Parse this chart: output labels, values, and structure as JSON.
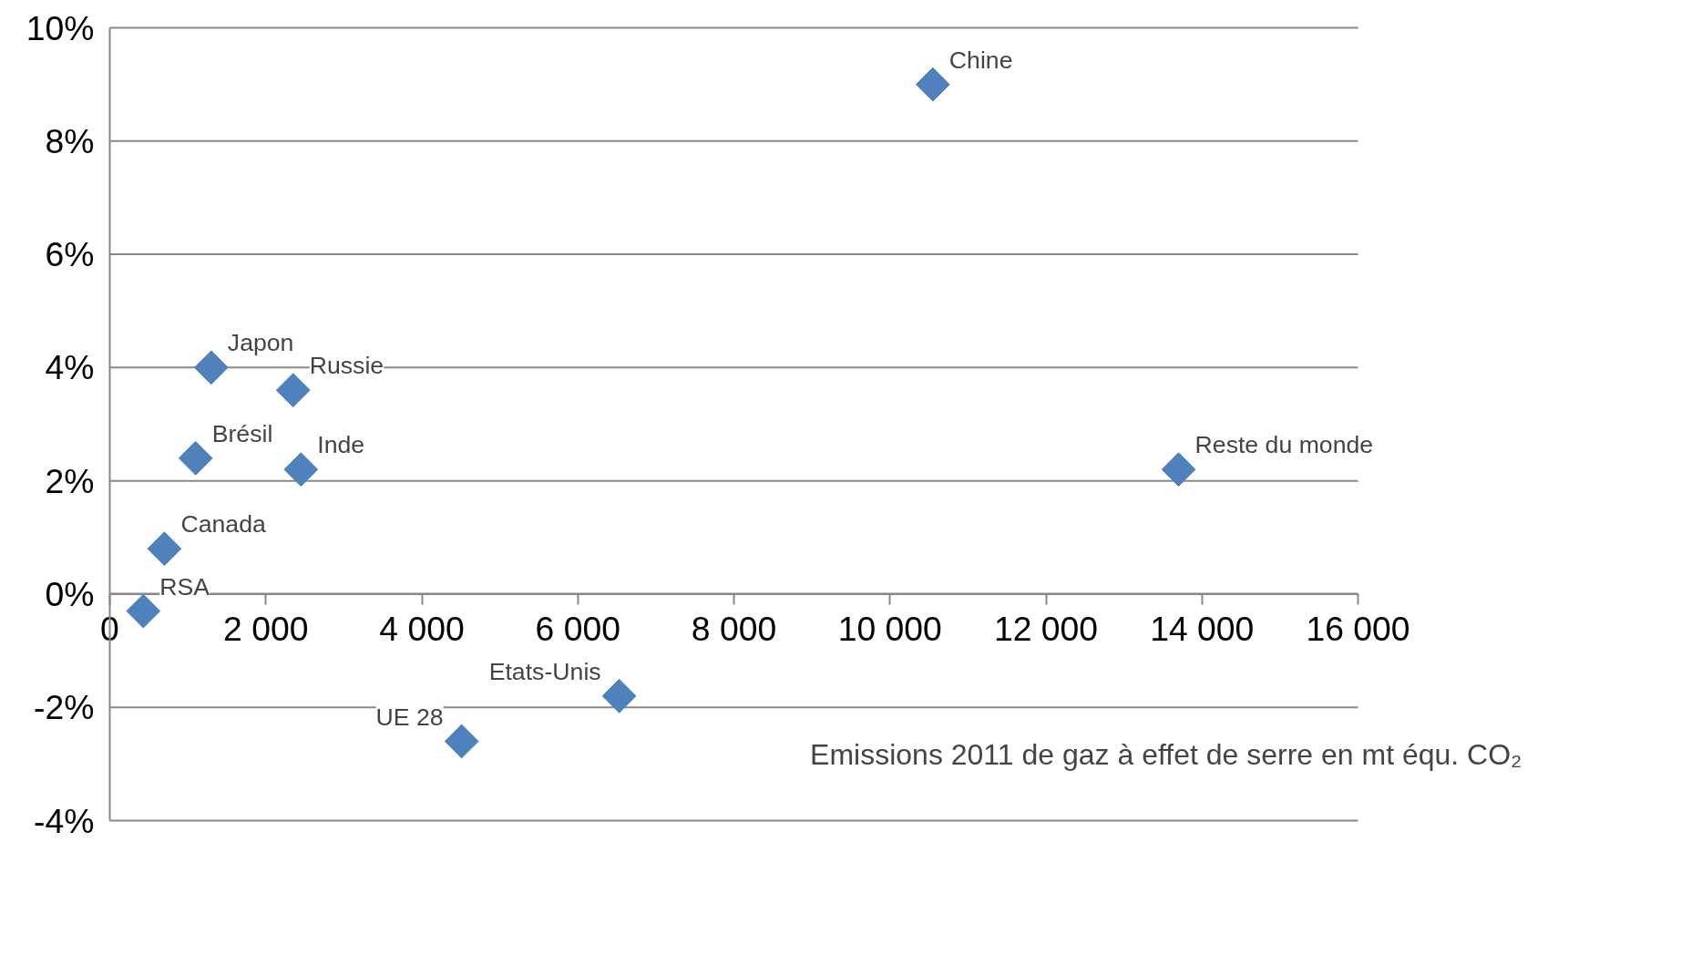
{
  "chart_data": {
    "type": "scatter",
    "xlabel": "Emissions 2011 de gaz à effet de serre en mt équ. CO₂",
    "xlim": [
      0,
      16000
    ],
    "xticks": [
      {
        "value": 0,
        "label": "0"
      },
      {
        "value": 2000,
        "label": "2 000"
      },
      {
        "value": 4000,
        "label": "4 000"
      },
      {
        "value": 6000,
        "label": "6 000"
      },
      {
        "value": 8000,
        "label": "8 000"
      },
      {
        "value": 10000,
        "label": "10 000"
      },
      {
        "value": 12000,
        "label": "12 000"
      },
      {
        "value": 14000,
        "label": "14 000"
      },
      {
        "value": 16000,
        "label": "16 000"
      }
    ],
    "ylim": [
      -4,
      10
    ],
    "yticks": [
      {
        "value": -4,
        "label": "-4%"
      },
      {
        "value": -2,
        "label": "-2%"
      },
      {
        "value": 0,
        "label": "0%"
      },
      {
        "value": 2,
        "label": "2%"
      },
      {
        "value": 4,
        "label": "4%"
      },
      {
        "value": 6,
        "label": "6%"
      },
      {
        "value": 8,
        "label": "8%"
      },
      {
        "value": 10,
        "label": "10%"
      }
    ],
    "grid": "y",
    "legend": false,
    "marker": "diamond",
    "series": [
      {
        "name": "Chine",
        "color": "#4f81bd",
        "x": [
          10550
        ],
        "values": [
          9.0
        ]
      },
      {
        "name": "Japon",
        "color": "#4f81bd",
        "x": [
          1300
        ],
        "values": [
          4.0
        ]
      },
      {
        "name": "Russie",
        "color": "#4f81bd",
        "x": [
          2350
        ],
        "values": [
          3.6
        ]
      },
      {
        "name": "Brésil",
        "color": "#4f81bd",
        "x": [
          1100
        ],
        "values": [
          2.4
        ]
      },
      {
        "name": "Inde",
        "color": "#4f81bd",
        "x": [
          2450
        ],
        "values": [
          2.2
        ]
      },
      {
        "name": "Canada",
        "color": "#4f81bd",
        "x": [
          700
        ],
        "values": [
          0.8
        ]
      },
      {
        "name": "RSA",
        "color": "#4f81bd",
        "x": [
          430
        ],
        "values": [
          -0.3
        ]
      },
      {
        "name": "Etats-Unis",
        "color": "#4f81bd",
        "x": [
          6530
        ],
        "values": [
          -1.8
        ]
      },
      {
        "name": "UE 28",
        "color": "#4f81bd",
        "x": [
          4510
        ],
        "values": [
          -2.6
        ]
      },
      {
        "name": "Reste du monde",
        "color": "#4f81bd",
        "x": [
          13700
        ],
        "values": [
          2.2
        ]
      }
    ]
  }
}
